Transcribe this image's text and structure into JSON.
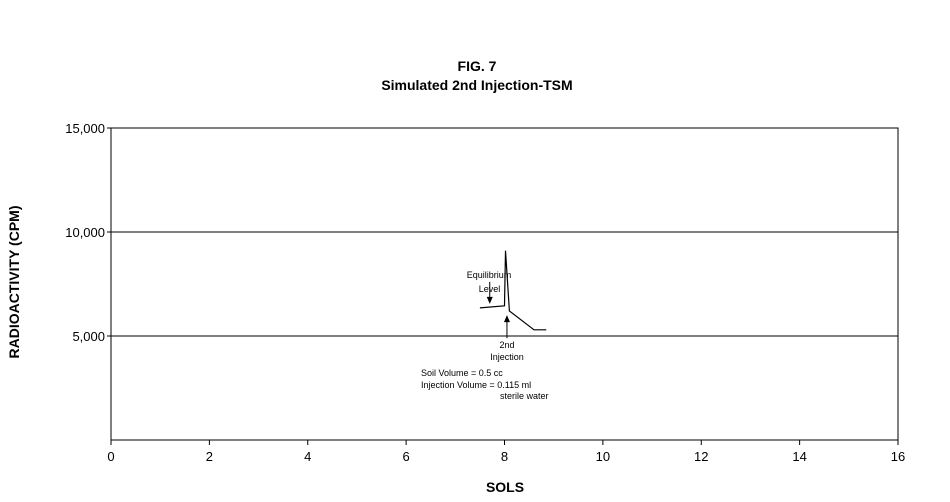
{
  "chart_data": {
    "type": "line",
    "title": "FIG. 7",
    "subtitle": "Simulated 2nd Injection-TSM",
    "xlabel": "SOLS",
    "ylabel": "RADIOACTIVITY (CPM)",
    "xlim": [
      0,
      16
    ],
    "ylim": [
      0,
      15000
    ],
    "x_ticks": [
      0,
      2,
      4,
      6,
      8,
      10,
      12,
      14,
      16
    ],
    "x_tick_labels": [
      "0",
      "2",
      "4",
      "6",
      "8",
      "10",
      "12",
      "14",
      "16"
    ],
    "y_ticks": [
      5000,
      10000,
      15000
    ],
    "y_tick_labels": [
      "5,000",
      "10,000",
      "15,000"
    ],
    "grid": "horizontal",
    "series": [
      {
        "points": [
          {
            "x": 7.5,
            "y": 6350
          },
          {
            "x": 8.0,
            "y": 6450
          },
          {
            "x": 8.02,
            "y": 9100
          },
          {
            "x": 8.1,
            "y": 6200
          },
          {
            "x": 8.6,
            "y": 5300
          },
          {
            "x": 8.85,
            "y": 5300
          }
        ]
      }
    ],
    "annotations": [
      {
        "lines": [
          "Equilibrium",
          "Level"
        ],
        "arrow": "down",
        "x": 7.7,
        "y": 6450
      },
      {
        "lines": [
          "2nd",
          "Injection"
        ],
        "arrow": "up",
        "x": 8.05,
        "y": 6100
      },
      {
        "lines": [
          "Soil Volume = 0.5 cc",
          "Injection Volume = 0.115 ml",
          "sterile water"
        ]
      }
    ]
  }
}
